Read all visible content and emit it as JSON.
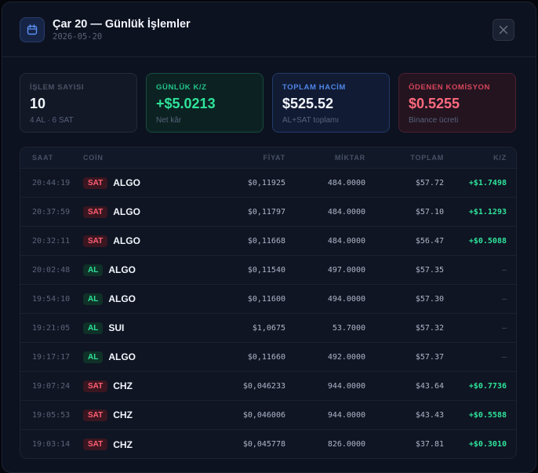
{
  "header": {
    "title": "Çar 20 — Günlük İşlemler",
    "date": "2026-05-20"
  },
  "stats": [
    {
      "label": "İŞLEM SAYISI",
      "value": "10",
      "sub": "4 AL · 6 SAT"
    },
    {
      "label": "GÜNLÜK K/Z",
      "value": "+$5.0213",
      "sub": "Net kâr"
    },
    {
      "label": "TOPLAM HACİM",
      "value": "$525.52",
      "sub": "AL+SAT toplamı"
    },
    {
      "label": "ÖDENEN KOMİSYON",
      "value": "$0.5255",
      "sub": "Binance ücreti"
    }
  ],
  "table": {
    "columns": [
      "SAAT",
      "COİN",
      "FİYAT",
      "MİKTAR",
      "TOPLAM",
      "K/Z"
    ],
    "rows": [
      {
        "time": "20:44:19",
        "side": "SAT",
        "coin": "ALGO",
        "price": "$0,11925",
        "qty": "484.0000",
        "total": "$57.72",
        "pnl": "+$1.7498"
      },
      {
        "time": "20:37:59",
        "side": "SAT",
        "coin": "ALGO",
        "price": "$0,11797",
        "qty": "484.0000",
        "total": "$57.10",
        "pnl": "+$1.1293"
      },
      {
        "time": "20:32:11",
        "side": "SAT",
        "coin": "ALGO",
        "price": "$0,11668",
        "qty": "484.0000",
        "total": "$56.47",
        "pnl": "+$0.5088"
      },
      {
        "time": "20:02:48",
        "side": "AL",
        "coin": "ALGO",
        "price": "$0,11540",
        "qty": "497.0000",
        "total": "$57.35",
        "pnl": "—"
      },
      {
        "time": "19:54:10",
        "side": "AL",
        "coin": "ALGO",
        "price": "$0,11600",
        "qty": "494.0000",
        "total": "$57.30",
        "pnl": "—"
      },
      {
        "time": "19:21:05",
        "side": "AL",
        "coin": "SUI",
        "price": "$1,0675",
        "qty": "53.7000",
        "total": "$57.32",
        "pnl": "—"
      },
      {
        "time": "19:17:17",
        "side": "AL",
        "coin": "ALGO",
        "price": "$0,11660",
        "qty": "492.0000",
        "total": "$57.37",
        "pnl": "—"
      },
      {
        "time": "19:07:24",
        "side": "SAT",
        "coin": "CHZ",
        "price": "$0,046233",
        "qty": "944.0000",
        "total": "$43.64",
        "pnl": "+$0.7736"
      },
      {
        "time": "19:05:53",
        "side": "SAT",
        "coin": "CHZ",
        "price": "$0,046006",
        "qty": "944.0000",
        "total": "$43.43",
        "pnl": "+$0.5588"
      },
      {
        "time": "19:03:14",
        "side": "SAT",
        "coin": "CHZ",
        "price": "$0,045778",
        "qty": "826.0000",
        "total": "$37.81",
        "pnl": "+$0.3010"
      }
    ]
  },
  "icons": {
    "header": "calendar-icon",
    "close": "close-icon"
  },
  "colors": {
    "profit": "#2fe39a",
    "loss": "#ff5f74",
    "accent": "#4f86e8"
  }
}
